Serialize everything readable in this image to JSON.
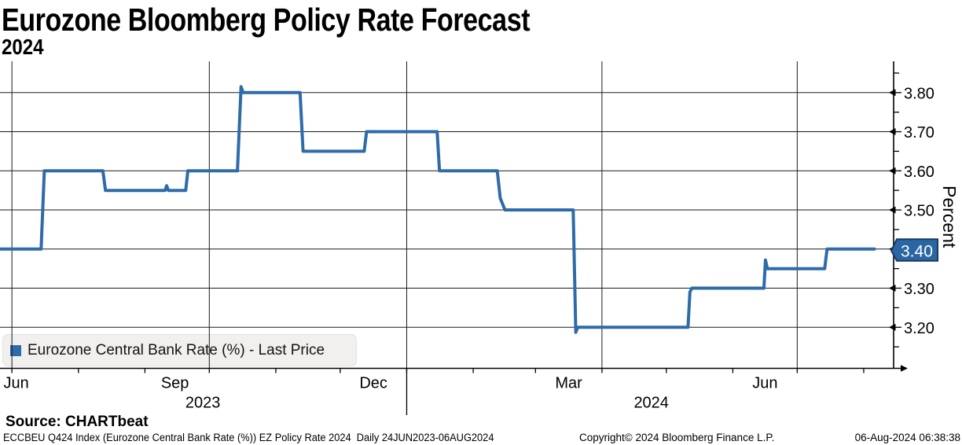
{
  "header": {
    "title": "Eurozone Bloomberg Policy Rate Forecast",
    "subtitle": "2024"
  },
  "legend": {
    "label": "Eurozone Central Bank Rate (%) - Last Price",
    "marker_color": "#2e6ba8"
  },
  "source_line": "Source: CHARTbeat",
  "footer": {
    "left": "ECCBEU Q424 Index (Eurozone Central Bank Rate (%)) EZ Policy Rate 2024  Daily 24JUN2023-06AUG2024",
    "center": "Copyright© 2024 Bloomberg Finance L.P.",
    "right": "06-Aug-2024 06:38:38"
  },
  "colors": {
    "background": "#ffffff",
    "grid": "#1a1a1a",
    "line": "#2e6ba8",
    "tag_fill": "#2b66a4",
    "tag_border": "#183a61",
    "legend_bg": "#f1f0ee"
  },
  "chart_data": {
    "type": "line",
    "style": "step",
    "title": "Eurozone Bloomberg Policy Rate Forecast 2024",
    "series_name": "Eurozone Central Bank Rate (%) - Last Price",
    "line_color": "#2e6ba8",
    "date_range": "24JUN2023-06AUG2024",
    "x_unit": "days since 2023-06-26 (start of plotted range)",
    "last_price": "3.40",
    "ylabel": "Percent",
    "ylim": [
      3.095,
      3.88
    ],
    "grid": true,
    "points": [
      [
        -2,
        3.4
      ],
      [
        18.6,
        3.4
      ],
      [
        20.1,
        3.6
      ],
      [
        47.4,
        3.6
      ],
      [
        48.6,
        3.55
      ],
      [
        76.4,
        3.55
      ],
      [
        77.1,
        3.562
      ],
      [
        77.9,
        3.55
      ],
      [
        86.0,
        3.55
      ],
      [
        87.0,
        3.6
      ],
      [
        110.1,
        3.6
      ],
      [
        111.8,
        3.815
      ],
      [
        112.8,
        3.8
      ],
      [
        139.3,
        3.8
      ],
      [
        140.7,
        3.65
      ],
      [
        169.2,
        3.65
      ],
      [
        170.3,
        3.7
      ],
      [
        203.2,
        3.7
      ],
      [
        204.3,
        3.6
      ],
      [
        231.2,
        3.6
      ],
      [
        232.6,
        3.53
      ],
      [
        234.8,
        3.5
      ],
      [
        266.6,
        3.5
      ],
      [
        267.8,
        3.187
      ],
      [
        268.7,
        3.2
      ],
      [
        320.1,
        3.2
      ],
      [
        321.0,
        3.29
      ],
      [
        321.9,
        3.3
      ],
      [
        355.5,
        3.3
      ],
      [
        356.2,
        3.372
      ],
      [
        357.1,
        3.35
      ],
      [
        383.8,
        3.35
      ],
      [
        384.9,
        3.4
      ],
      [
        407,
        3.4
      ]
    ],
    "y_axis": {
      "label": "Percent",
      "major_ticks": [
        3.2,
        3.3,
        3.4,
        3.5,
        3.6,
        3.7,
        3.8
      ],
      "minor_ticks": [
        3.15,
        3.25,
        3.35,
        3.45,
        3.55,
        3.65,
        3.75,
        3.85
      ]
    },
    "x_axis": {
      "month_tick_days": [
        5,
        36,
        67,
        97,
        128,
        158,
        189,
        220,
        249,
        280,
        310,
        341,
        371,
        402
      ],
      "quarter_gridline_days": [
        5,
        97,
        189,
        280,
        371
      ],
      "month_labels": [
        {
          "label": "Jun",
          "day": 7
        },
        {
          "label": "Sep",
          "day": 81
        },
        {
          "label": "Dec",
          "day": 173.5
        },
        {
          "label": "Mar",
          "day": 264.5
        },
        {
          "label": "Jun",
          "day": 356
        }
      ],
      "year_labels": [
        {
          "label": "2023",
          "day": 94
        },
        {
          "label": "2024",
          "day": 303
        }
      ],
      "year_separator_day": 189,
      "axis_end_day": 416
    }
  }
}
